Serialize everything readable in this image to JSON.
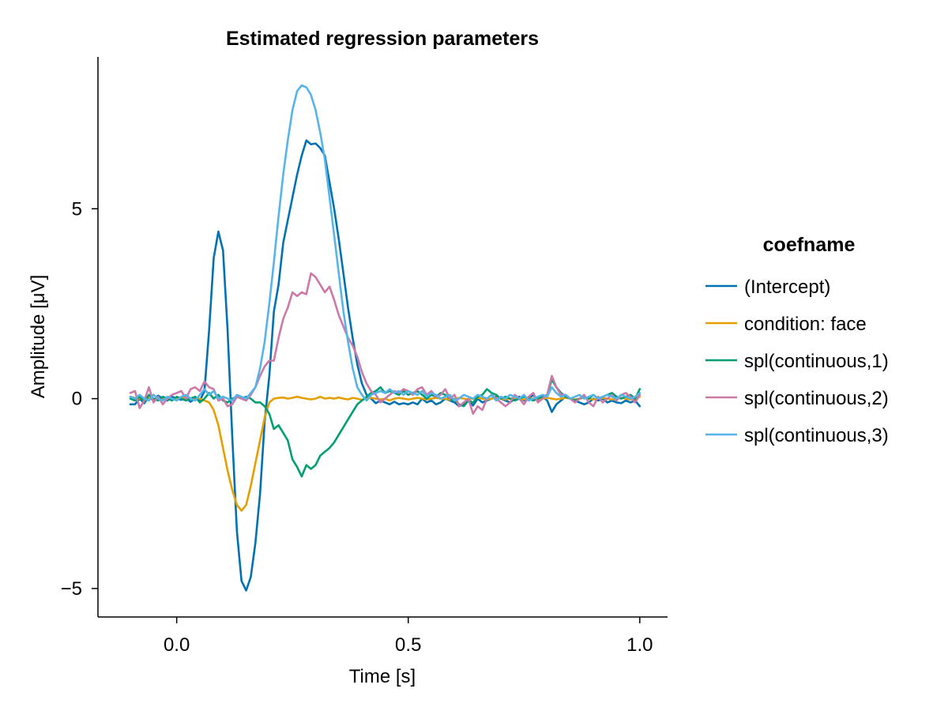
{
  "chart_data": {
    "type": "line",
    "title": "Estimated regression parameters",
    "xlabel": "Time [s]",
    "ylabel": "Amplitude [μV]",
    "xlim": [
      -0.17,
      1.06
    ],
    "ylim": [
      -5.75,
      9.0
    ],
    "xticks": [
      0.0,
      0.5,
      1.0
    ],
    "xtick_labels": [
      "0.0",
      "0.5",
      "1.0"
    ],
    "yticks": [
      -5,
      0,
      5
    ],
    "ytick_labels": [
      "−5",
      "0",
      "5"
    ],
    "grid": false,
    "legend": {
      "title": "coefname",
      "placement": "right"
    },
    "x": [
      -0.1,
      -0.09,
      -0.08,
      -0.07,
      -0.06,
      -0.05,
      -0.04,
      -0.03,
      -0.02,
      -0.01,
      0.0,
      0.01,
      0.02,
      0.03,
      0.04,
      0.05,
      0.06,
      0.07,
      0.08,
      0.09,
      0.1,
      0.11,
      0.12,
      0.13,
      0.14,
      0.15,
      0.16,
      0.17,
      0.18,
      0.19,
      0.2,
      0.21,
      0.22,
      0.23,
      0.24,
      0.25,
      0.26,
      0.27,
      0.28,
      0.29,
      0.3,
      0.31,
      0.32,
      0.33,
      0.34,
      0.35,
      0.36,
      0.37,
      0.38,
      0.39,
      0.4,
      0.41,
      0.42,
      0.43,
      0.44,
      0.45,
      0.46,
      0.47,
      0.48,
      0.49,
      0.5,
      0.51,
      0.52,
      0.53,
      0.54,
      0.55,
      0.56,
      0.57,
      0.58,
      0.59,
      0.6,
      0.61,
      0.62,
      0.63,
      0.64,
      0.65,
      0.66,
      0.67,
      0.68,
      0.69,
      0.7,
      0.71,
      0.72,
      0.73,
      0.74,
      0.75,
      0.76,
      0.77,
      0.78,
      0.79,
      0.8,
      0.81,
      0.82,
      0.83,
      0.84,
      0.85,
      0.86,
      0.87,
      0.88,
      0.89,
      0.9,
      0.91,
      0.92,
      0.93,
      0.94,
      0.95,
      0.96,
      0.97,
      0.98,
      0.99,
      1.0
    ],
    "series": [
      {
        "name": "(Intercept)",
        "color": "#0072B2",
        "values": [
          -0.15,
          -0.15,
          0.0,
          -0.12,
          0.05,
          -0.05,
          0.08,
          0.0,
          -0.05,
          0.05,
          0.0,
          -0.03,
          0.02,
          -0.08,
          0.0,
          -0.05,
          0.2,
          1.8,
          3.7,
          4.4,
          3.9,
          1.8,
          -1.0,
          -3.5,
          -4.8,
          -5.05,
          -4.7,
          -3.8,
          -2.5,
          -0.6,
          0.6,
          2.3,
          3.0,
          4.1,
          4.7,
          5.3,
          5.9,
          6.4,
          6.8,
          6.7,
          6.72,
          6.6,
          6.4,
          5.7,
          5.0,
          4.2,
          3.3,
          2.4,
          1.6,
          0.9,
          0.4,
          0.1,
          0.0,
          -0.12,
          -0.05,
          -0.1,
          -0.15,
          -0.08,
          -0.15,
          -0.12,
          -0.15,
          -0.1,
          -0.15,
          0.0,
          -0.1,
          -0.05,
          -0.15,
          -0.1,
          0.0,
          -0.05,
          -0.1,
          -0.2,
          -0.15,
          -0.05,
          -0.18,
          0.0,
          -0.1,
          -0.05,
          0.0,
          0.05,
          0.0,
          -0.05,
          -0.1,
          0.0,
          0.05,
          -0.05,
          0.0,
          0.1,
          -0.05,
          0.05,
          -0.05,
          -0.35,
          -0.15,
          -0.05,
          0.05,
          0.0,
          -0.05,
          -0.1,
          -0.15,
          -0.1,
          0.0,
          -0.05,
          0.0,
          -0.1,
          -0.05,
          -0.1,
          -0.12,
          -0.05,
          -0.1,
          -0.05,
          -0.2
        ]
      },
      {
        "name": "condition: face",
        "color": "#E69F00",
        "values": [
          0.05,
          0.02,
          0.0,
          -0.02,
          0.03,
          0.0,
          -0.02,
          0.02,
          0.0,
          -0.03,
          0.0,
          0.03,
          0.02,
          0.0,
          -0.02,
          0.0,
          -0.05,
          -0.1,
          -0.3,
          -0.7,
          -1.3,
          -1.9,
          -2.4,
          -2.8,
          -2.95,
          -2.8,
          -2.3,
          -1.7,
          -1.1,
          -0.5,
          -0.1,
          0.0,
          0.02,
          0.03,
          0.0,
          0.02,
          0.05,
          0.02,
          0.0,
          -0.02,
          0.0,
          0.05,
          0.0,
          0.02,
          0.0,
          0.03,
          0.0,
          -0.02,
          0.02,
          0.0,
          -0.03,
          0.0,
          0.02,
          0.0,
          -0.02,
          0.0,
          -0.05,
          0.0,
          0.02,
          0.0,
          -0.02,
          0.0,
          0.02,
          0.0,
          -0.02,
          0.0,
          0.02,
          0.0,
          0.0,
          -0.03,
          0.0,
          0.02,
          0.0,
          -0.02,
          0.0,
          0.02,
          0.0,
          -0.02,
          0.0,
          0.02,
          0.0,
          -0.02,
          0.0,
          0.02,
          0.0,
          -0.02,
          0.0,
          0.0,
          -0.02,
          0.0,
          0.02,
          0.0,
          -0.02,
          0.0,
          0.02,
          0.0,
          -0.02,
          0.0,
          0.02,
          0.0,
          -0.02,
          0.0,
          0.02,
          0.0,
          -0.02,
          0.0,
          0.02,
          0.0,
          -0.02,
          0.0,
          0.05
        ]
      },
      {
        "name": "spl(continuous,1)",
        "color": "#009E73",
        "values": [
          0.0,
          -0.05,
          0.05,
          -0.1,
          0.1,
          0.0,
          -0.05,
          0.05,
          0.0,
          -0.05,
          0.05,
          0.0,
          -0.05,
          0.0,
          0.05,
          -0.1,
          0.0,
          0.15,
          0.0,
          0.1,
          -0.05,
          -0.1,
          0.0,
          0.05,
          0.0,
          0.05,
          0.0,
          -0.1,
          -0.1,
          -0.2,
          -0.4,
          -0.8,
          -0.7,
          -0.9,
          -1.1,
          -1.6,
          -1.8,
          -2.05,
          -1.75,
          -1.85,
          -1.75,
          -1.5,
          -1.4,
          -1.3,
          -1.15,
          -0.95,
          -0.75,
          -0.55,
          -0.35,
          -0.15,
          -0.05,
          0.05,
          0.15,
          0.2,
          0.3,
          0.15,
          0.2,
          0.15,
          0.1,
          0.2,
          0.1,
          0.15,
          0.2,
          0.1,
          0.0,
          0.1,
          0.05,
          0.15,
          0.1,
          0.0,
          -0.05,
          -0.15,
          -0.2,
          -0.05,
          -0.1,
          0.05,
          0.1,
          0.25,
          0.15,
          0.1,
          0.0,
          0.05,
          0.0,
          -0.05,
          0.0,
          0.05,
          0.0,
          -0.05,
          0.0,
          0.05,
          0.1,
          0.5,
          0.3,
          0.15,
          0.05,
          0.0,
          -0.05,
          0.0,
          0.05,
          0.0,
          0.1,
          0.0,
          0.05,
          0.1,
          0.15,
          0.05,
          0.0,
          0.05,
          0.1,
          0.0,
          0.25
        ]
      },
      {
        "name": "spl(continuous,2)",
        "color": "#CC79A7",
        "values": [
          0.15,
          0.2,
          -0.25,
          -0.05,
          0.3,
          -0.1,
          0.05,
          -0.15,
          0.0,
          0.1,
          0.15,
          0.2,
          0.0,
          0.25,
          0.3,
          0.2,
          0.45,
          0.3,
          0.25,
          -0.05,
          0.0,
          -0.2,
          -0.15,
          0.05,
          0.0,
          -0.05,
          0.1,
          0.3,
          0.6,
          0.85,
          1.0,
          1.0,
          1.6,
          2.1,
          2.4,
          2.8,
          2.7,
          2.8,
          2.75,
          3.3,
          3.2,
          3.0,
          2.8,
          2.95,
          2.6,
          2.2,
          1.9,
          1.6,
          1.4,
          1.1,
          0.7,
          0.4,
          0.2,
          0.1,
          -0.1,
          0.0,
          0.1,
          0.2,
          0.15,
          0.25,
          0.2,
          0.1,
          0.25,
          0.3,
          0.1,
          0.2,
          0.05,
          0.1,
          0.25,
          0.0,
          0.1,
          -0.2,
          -0.1,
          0.0,
          -0.4,
          -0.2,
          -0.3,
          0.0,
          0.1,
          0.0,
          -0.1,
          -0.2,
          -0.1,
          0.1,
          0.0,
          -0.15,
          0.05,
          0.15,
          -0.1,
          0.0,
          0.1,
          0.6,
          0.3,
          0.1,
          0.1,
          0.0,
          -0.1,
          0.0,
          0.1,
          -0.1,
          -0.2,
          0.05,
          -0.1,
          0.0,
          0.1,
          -0.05,
          0.1,
          0.15,
          0.05,
          -0.1,
          0.1
        ]
      },
      {
        "name": "spl(continuous,3)",
        "color": "#56B4E9",
        "values": [
          0.05,
          0.0,
          0.1,
          0.0,
          -0.05,
          0.1,
          0.0,
          -0.05,
          0.05,
          0.0,
          -0.05,
          0.05,
          0.1,
          0.0,
          -0.05,
          0.1,
          0.25,
          0.1,
          0.2,
          0.0,
          0.05,
          0.0,
          -0.05,
          0.1,
          0.05,
          0.0,
          0.15,
          0.3,
          0.8,
          1.5,
          2.5,
          3.6,
          4.8,
          5.9,
          6.8,
          7.6,
          8.1,
          8.25,
          8.2,
          8.0,
          7.6,
          7.0,
          6.3,
          5.3,
          4.3,
          3.3,
          2.3,
          1.5,
          0.8,
          0.3,
          0.1,
          -0.05,
          0.1,
          0.15,
          0.2,
          0.15,
          0.25,
          0.15,
          0.2,
          0.1,
          0.2,
          0.15,
          0.1,
          0.2,
          0.05,
          0.15,
          0.1,
          0.0,
          0.05,
          0.1,
          -0.05,
          0.0,
          0.1,
          0.05,
          0.0,
          0.1,
          0.05,
          0.0,
          0.1,
          -0.05,
          0.05,
          0.0,
          0.1,
          0.05,
          0.0,
          0.1,
          -0.05,
          0.0,
          0.05,
          0.1,
          0.05,
          0.3,
          0.15,
          0.05,
          0.1,
          0.0,
          0.05,
          0.1,
          0.0,
          0.05,
          0.1,
          0.0,
          0.05,
          0.1,
          0.05,
          0.0,
          0.1,
          0.05,
          0.0,
          0.05,
          0.15
        ]
      }
    ]
  }
}
